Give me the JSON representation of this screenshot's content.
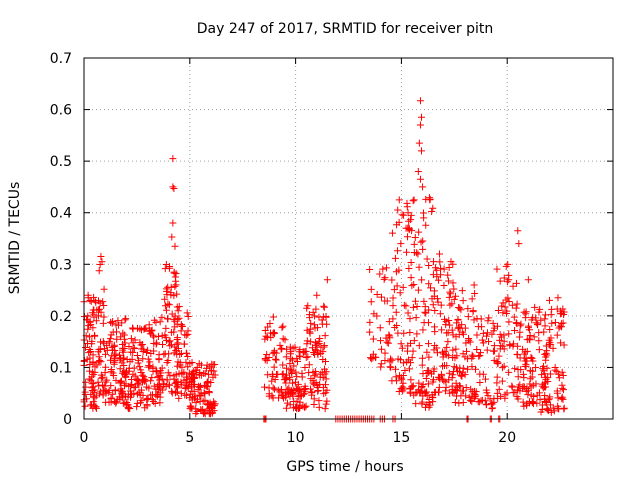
{
  "chart_data": {
    "type": "scatter",
    "title": "Day 247 of 2017, SRMTID for receiver pitn",
    "xlabel": "GPS time / hours",
    "ylabel": "SRMTID / TECUs",
    "xlim": [
      0,
      25
    ],
    "ylim": [
      0,
      0.7
    ],
    "x_ticks": [
      0,
      5,
      10,
      15,
      20
    ],
    "y_ticks": [
      0,
      0.1,
      0.2,
      0.3,
      0.4,
      0.5,
      0.6,
      0.7
    ],
    "x_tick_labels": [
      "0",
      "5",
      "10",
      "15",
      "20"
    ],
    "y_tick_labels": [
      "0",
      "0.1",
      "0.2",
      "0.3",
      "0.4",
      "0.5",
      "0.6",
      "0.7"
    ],
    "grid": true,
    "marker": "+",
    "color": "#ff0000",
    "series": [
      {
        "name": "SRMTID",
        "envelopes": [
          {
            "x0": 0.0,
            "x1": 0.6,
            "low": 0.02,
            "high": 0.24,
            "n": 80
          },
          {
            "x0": 0.6,
            "x1": 1.0,
            "low": 0.04,
            "high": 0.31,
            "n": 40
          },
          {
            "x0": 1.0,
            "x1": 2.0,
            "low": 0.03,
            "high": 0.2,
            "n": 100
          },
          {
            "x0": 2.0,
            "x1": 3.0,
            "low": 0.02,
            "high": 0.18,
            "n": 90
          },
          {
            "x0": 3.0,
            "x1": 3.8,
            "low": 0.03,
            "high": 0.2,
            "n": 70
          },
          {
            "x0": 3.8,
            "x1": 4.4,
            "low": 0.05,
            "high": 0.3,
            "n": 70
          },
          {
            "x0": 4.4,
            "x1": 5.0,
            "low": 0.04,
            "high": 0.22,
            "n": 60
          },
          {
            "x0": 5.0,
            "x1": 6.2,
            "low": 0.01,
            "high": 0.11,
            "n": 110
          },
          {
            "x0": 8.5,
            "x1": 9.5,
            "low": 0.04,
            "high": 0.2,
            "n": 60
          },
          {
            "x0": 9.5,
            "x1": 10.5,
            "low": 0.02,
            "high": 0.14,
            "n": 90
          },
          {
            "x0": 10.5,
            "x1": 11.5,
            "low": 0.02,
            "high": 0.22,
            "n": 90
          },
          {
            "x0": 13.5,
            "x1": 14.5,
            "low": 0.1,
            "high": 0.3,
            "n": 40
          },
          {
            "x0": 14.5,
            "x1": 15.5,
            "low": 0.05,
            "high": 0.42,
            "n": 80
          },
          {
            "x0": 15.5,
            "x1": 16.5,
            "low": 0.02,
            "high": 0.45,
            "n": 90
          },
          {
            "x0": 16.5,
            "x1": 17.5,
            "low": 0.05,
            "high": 0.32,
            "n": 90
          },
          {
            "x0": 17.5,
            "x1": 18.5,
            "low": 0.03,
            "high": 0.26,
            "n": 80
          },
          {
            "x0": 18.5,
            "x1": 19.4,
            "low": 0.02,
            "high": 0.2,
            "n": 50
          },
          {
            "x0": 19.5,
            "x1": 20.5,
            "low": 0.04,
            "high": 0.3,
            "n": 70
          },
          {
            "x0": 20.5,
            "x1": 21.5,
            "low": 0.02,
            "high": 0.22,
            "n": 80
          },
          {
            "x0": 21.5,
            "x1": 22.7,
            "low": 0.01,
            "high": 0.22,
            "n": 100
          }
        ],
        "peaks": [
          {
            "x": 4.2,
            "y": 0.505
          },
          {
            "x": 4.2,
            "y": 0.45
          },
          {
            "x": 4.25,
            "y": 0.447
          },
          {
            "x": 4.2,
            "y": 0.38
          },
          {
            "x": 4.15,
            "y": 0.353
          },
          {
            "x": 4.3,
            "y": 0.335
          },
          {
            "x": 4.35,
            "y": 0.26
          },
          {
            "x": 0.8,
            "y": 0.315
          },
          {
            "x": 0.85,
            "y": 0.305
          },
          {
            "x": 11.5,
            "y": 0.27
          },
          {
            "x": 11.0,
            "y": 0.24
          },
          {
            "x": 14.9,
            "y": 0.425
          },
          {
            "x": 15.1,
            "y": 0.395
          },
          {
            "x": 15.3,
            "y": 0.37
          },
          {
            "x": 15.9,
            "y": 0.617
          },
          {
            "x": 15.95,
            "y": 0.585
          },
          {
            "x": 15.9,
            "y": 0.57
          },
          {
            "x": 15.85,
            "y": 0.535
          },
          {
            "x": 15.95,
            "y": 0.52
          },
          {
            "x": 15.8,
            "y": 0.48
          },
          {
            "x": 15.9,
            "y": 0.465
          },
          {
            "x": 16.0,
            "y": 0.45
          },
          {
            "x": 16.05,
            "y": 0.39
          },
          {
            "x": 16.8,
            "y": 0.32
          },
          {
            "x": 20.5,
            "y": 0.365
          },
          {
            "x": 20.55,
            "y": 0.34
          },
          {
            "x": 21.0,
            "y": 0.27
          },
          {
            "x": 22.0,
            "y": 0.23
          },
          {
            "x": 22.4,
            "y": 0.235
          },
          {
            "x": 13.5,
            "y": 0.29
          },
          {
            "x": 22.5,
            "y": 0.18
          }
        ],
        "zero_markers": [
          8.5,
          8.55,
          8.6,
          11.9,
          12.0,
          12.1,
          12.2,
          12.3,
          12.4,
          12.5,
          12.6,
          12.7,
          12.8,
          12.9,
          13.0,
          13.1,
          13.2,
          13.3,
          13.4,
          13.5,
          13.6,
          13.7,
          14.0,
          14.1,
          14.2,
          14.6,
          14.7,
          18.1,
          18.15,
          19.2,
          19.25,
          19.6,
          19.65
        ]
      }
    ]
  }
}
